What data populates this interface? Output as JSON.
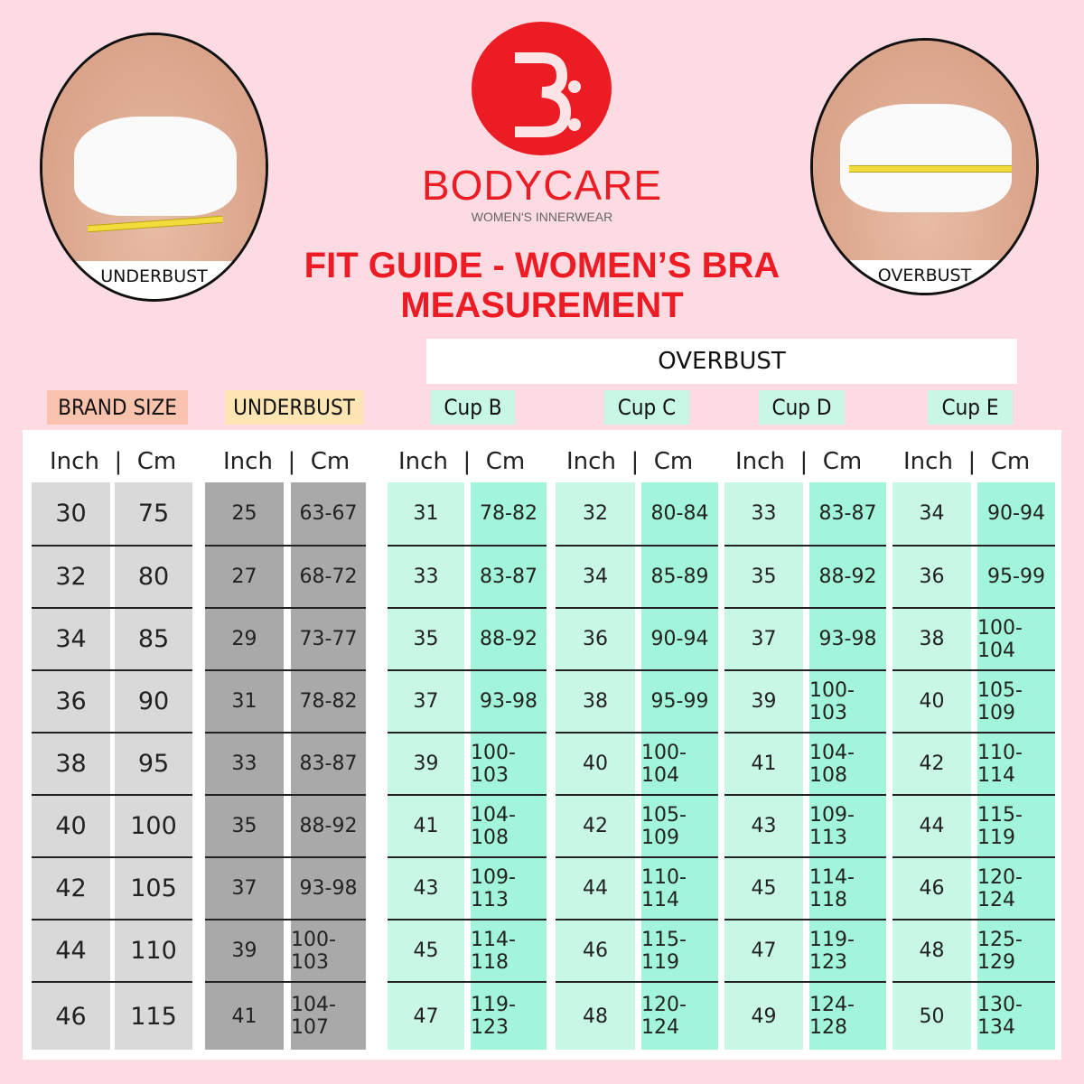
{
  "logo": {
    "brand": "BODYCARE",
    "tagline": "WOMEN'S INNERWEAR",
    "mark": "3:",
    "color": "#ec1c24"
  },
  "photos": {
    "left_caption": "UNDERBUST",
    "right_caption": "OVERBUST"
  },
  "title": {
    "line1": "FIT GUIDE - WOMEN’S BRA",
    "line2": "MEASUREMENT"
  },
  "overbust_label": "OVERBUST",
  "groups": [
    {
      "label": "BRAND SIZE",
      "color": "#f9c3ad",
      "inch_color": "#d9d9d9",
      "cm_color": "#d9d9d9"
    },
    {
      "label": "UNDERBUST",
      "color": "#fde5b4",
      "inch_color": "#a9a9a9",
      "cm_color": "#a9a9a9"
    },
    {
      "label": "Cup B",
      "color": "#c8f7e6",
      "inch_color": "#c8f7e6",
      "cm_color": "#a2f5da"
    },
    {
      "label": "Cup C",
      "color": "#c8f7e6",
      "inch_color": "#c8f7e6",
      "cm_color": "#a2f5da"
    },
    {
      "label": "Cup D",
      "color": "#c8f7e6",
      "inch_color": "#c8f7e6",
      "cm_color": "#a2f5da"
    },
    {
      "label": "Cup E",
      "color": "#c8f7e6",
      "inch_color": "#c8f7e6",
      "cm_color": "#a2f5da"
    }
  ],
  "subheader": "Inch  |  Cm",
  "rows": [
    [
      [
        "30",
        "75"
      ],
      [
        "25",
        "63-67"
      ],
      [
        "31",
        "78-82"
      ],
      [
        "32",
        "80-84"
      ],
      [
        "33",
        "83-87"
      ],
      [
        "34",
        "90-94"
      ]
    ],
    [
      [
        "32",
        "80"
      ],
      [
        "27",
        "68-72"
      ],
      [
        "33",
        "83-87"
      ],
      [
        "34",
        "85-89"
      ],
      [
        "35",
        "88-92"
      ],
      [
        "36",
        "95-99"
      ]
    ],
    [
      [
        "34",
        "85"
      ],
      [
        "29",
        "73-77"
      ],
      [
        "35",
        "88-92"
      ],
      [
        "36",
        "90-94"
      ],
      [
        "37",
        "93-98"
      ],
      [
        "38",
        "100-104"
      ]
    ],
    [
      [
        "36",
        "90"
      ],
      [
        "31",
        "78-82"
      ],
      [
        "37",
        "93-98"
      ],
      [
        "38",
        "95-99"
      ],
      [
        "39",
        "100-103"
      ],
      [
        "40",
        "105-109"
      ]
    ],
    [
      [
        "38",
        "95"
      ],
      [
        "33",
        "83-87"
      ],
      [
        "39",
        "100-103"
      ],
      [
        "40",
        "100-104"
      ],
      [
        "41",
        "104-108"
      ],
      [
        "42",
        "110-114"
      ]
    ],
    [
      [
        "40",
        "100"
      ],
      [
        "35",
        "88-92"
      ],
      [
        "41",
        "104-108"
      ],
      [
        "42",
        "105-109"
      ],
      [
        "43",
        "109-113"
      ],
      [
        "44",
        "115-119"
      ]
    ],
    [
      [
        "42",
        "105"
      ],
      [
        "37",
        "93-98"
      ],
      [
        "43",
        "109-113"
      ],
      [
        "44",
        "110-114"
      ],
      [
        "45",
        "114-118"
      ],
      [
        "46",
        "120-124"
      ]
    ],
    [
      [
        "44",
        "110"
      ],
      [
        "39",
        "100-103"
      ],
      [
        "45",
        "114-118"
      ],
      [
        "46",
        "115-119"
      ],
      [
        "47",
        "119-123"
      ],
      [
        "48",
        "125-129"
      ]
    ],
    [
      [
        "46",
        "115"
      ],
      [
        "41",
        "104-107"
      ],
      [
        "47",
        "119-123"
      ],
      [
        "48",
        "120-124"
      ],
      [
        "49",
        "124-128"
      ],
      [
        "50",
        "130-134"
      ]
    ]
  ]
}
